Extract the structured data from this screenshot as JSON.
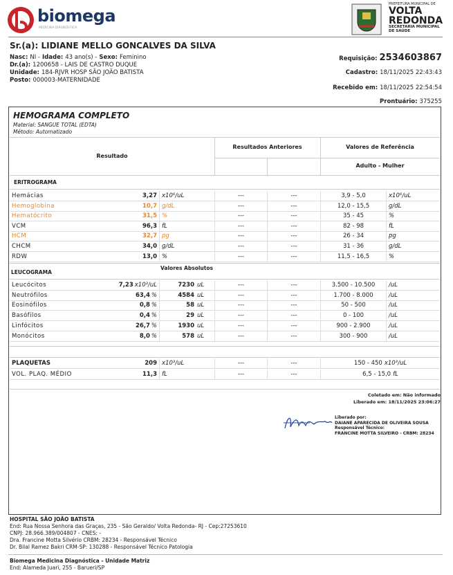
{
  "header": {
    "brand": "biomega",
    "brand_sub": "MEDICINA DIAGNÓSTICA",
    "gov": [
      "PREFEITURA MUNICIPAL DE",
      "VOLTA",
      "REDONDA",
      "SECRETARIA MUNICIPAL",
      "DE SAÚDE"
    ]
  },
  "patient": {
    "name": "Sr.(a): LIDIANE MELLO GONCALVES DA SILVA",
    "lines": [
      [
        {
          "label": "Nasc:",
          "value": "NI -"
        },
        {
          "label": "Idade:",
          "value": "43 ano(s) -"
        },
        {
          "label": "Sexo:",
          "value": "Feminino"
        }
      ],
      [
        {
          "label": "Dr.(a):",
          "value": "1200658 - LAIS DE CASTRO DUQUE"
        }
      ],
      [
        {
          "label": "Unidade:",
          "value": "184-RJVR HOSP SÃO JOÃO BATISTA"
        }
      ],
      [
        {
          "label": "Posto:",
          "value": "000003-MATERNIDADE"
        }
      ]
    ],
    "right": [
      {
        "label": "Requisição:",
        "value": "2534603867"
      },
      {
        "label": "Cadastro:",
        "value": "18/11/2025 22:43:43"
      },
      {
        "label": "Recebido em:",
        "value": "18/11/2025 22:54:54"
      },
      {
        "label": "Prontuário:",
        "value": "375255"
      }
    ]
  },
  "exam": {
    "title": "HEMOGRAMA COMPLETO",
    "material": "Material:  SANGUE TOTAL (EDTA)",
    "method": "Método:  Automatizado",
    "columns": {
      "result": "Resultado",
      "previous": "Resultados Anteriores",
      "reference": "Valores de Referência",
      "reference_sub": "Adulto - Mulher",
      "absolute": "Valores Absolutos"
    },
    "eritrograma": {
      "title": "ERITROGRAMA",
      "rows": [
        {
          "name": "Hemácias",
          "value": "3,27",
          "unit": "x10⁶/uL",
          "prev": [
            "---",
            "---"
          ],
          "ref": "3,9 - 5,0",
          "ref_unit": "x10⁶/uL"
        },
        {
          "name": "Hemoglobina",
          "value": "10,7",
          "unit": "g/dL",
          "prev": [
            "---",
            "---"
          ],
          "ref": "12,0 - 15,5",
          "ref_unit": "g/dL",
          "color": "#e8862a"
        },
        {
          "name": "Hematócrito",
          "value": "31,5",
          "unit": "%",
          "prev": [
            "---",
            "---"
          ],
          "ref": "35 - 45",
          "ref_unit": "%",
          "color": "#e8862a"
        },
        {
          "name": "VCM",
          "value": "96,3",
          "unit": "fL",
          "prev": [
            "---",
            "---"
          ],
          "ref": "82 - 98",
          "ref_unit": "fL"
        },
        {
          "name": "HCM",
          "value": "32,7",
          "unit": "pg",
          "prev": [
            "---",
            "---"
          ],
          "ref": "26 - 34",
          "ref_unit": "pg",
          "color": "#e8862a"
        },
        {
          "name": "CHCM",
          "value": "34,0",
          "unit": "g/dL",
          "prev": [
            "---",
            "---"
          ],
          "ref": "31 - 36",
          "ref_unit": "g/dL"
        },
        {
          "name": "RDW",
          "value": "13,0",
          "unit": "%",
          "prev": [
            "---",
            "---"
          ],
          "ref": "11,5 - 16,5",
          "ref_unit": "%"
        }
      ]
    },
    "leucograma": {
      "title": "LEUCOGRAMA",
      "rows": [
        {
          "name": "Leucócitos",
          "value": "7,23",
          "unit": "x10³/uL",
          "abs": "7230",
          "abs_unit": "uL",
          "prev": [
            "---",
            "---"
          ],
          "ref": "3.500 - 10.500",
          "ref_unit": "/uL"
        },
        {
          "name": "Neutrófilos",
          "value": "63,4",
          "unit": "%",
          "abs": "4584",
          "abs_unit": "uL",
          "prev": [
            "---",
            "---"
          ],
          "ref": "1.700 - 8.000",
          "ref_unit": "/uL"
        },
        {
          "name": "Eosinófilos",
          "value": "0,8",
          "unit": "%",
          "abs": "58",
          "abs_unit": "uL",
          "prev": [
            "---",
            "---"
          ],
          "ref": "50 - 500",
          "ref_unit": "/uL"
        },
        {
          "name": "Basófilos",
          "value": "0,4",
          "unit": "%",
          "abs": "29",
          "abs_unit": "uL",
          "prev": [
            "---",
            "---"
          ],
          "ref": "0 - 100",
          "ref_unit": "/uL"
        },
        {
          "name": "Linfócitos",
          "value": "26,7",
          "unit": "%",
          "abs": "1930",
          "abs_unit": "uL",
          "prev": [
            "---",
            "---"
          ],
          "ref": "900 - 2.900",
          "ref_unit": "/uL"
        },
        {
          "name": "Monócitos",
          "value": "8,0",
          "unit": "%",
          "abs": "578",
          "abs_unit": "uL",
          "prev": [
            "---",
            "---"
          ],
          "ref": "300 - 900",
          "ref_unit": "/uL"
        }
      ]
    },
    "plaquetas": {
      "rows": [
        {
          "name": "PLAQUETAS",
          "value": "209",
          "unit": "x10³/uL",
          "prev": [
            "---",
            "---"
          ],
          "ref": "150 - 450",
          "ref_unit": "x10³/uL",
          "bold": true
        },
        {
          "name": "VOL. PLAQ. MÉDIO",
          "value": "11,3",
          "unit": "fL",
          "prev": [
            "---",
            "---"
          ],
          "ref": "6,5 - 15,0",
          "ref_unit": "fL"
        }
      ]
    },
    "release": {
      "collected": "Coletado em: Não informado",
      "released": "Liberado em: 18/11/2025 23:06:27",
      "by_label": "Liberado por:",
      "by": "DAIANE APARECIDA DE OLIVEIRA SOUSA",
      "tech_label": "Responsável Técnico:",
      "tech": "FRANCINE MOTTA SILVEIRO - CRBM: 28234"
    }
  },
  "footer": {
    "hospital": {
      "title": "HOSPITAL SÃO JOÃO BATISTA",
      "lines": [
        "End: Rua Nossa Senhora das Graças, 235 - São Geraldo/ Volta Redonda- RJ - Cep:27253610",
        "CNPJ: 28.966.389/004807 - CNES: -",
        "Dra. Francine Motta Silvério CRBM: 28234 - Responsável Técnico",
        "Dr. Bilal Ramez Bakri CRM-SP: 130288 - Responsável Técnico Patologia"
      ]
    },
    "matrix": {
      "title": "Biomega Medicina Diagnóstica - Unidade Matriz",
      "lines": [
        "End: Alameda Juari, 255 - Barueri/SP"
      ]
    }
  }
}
